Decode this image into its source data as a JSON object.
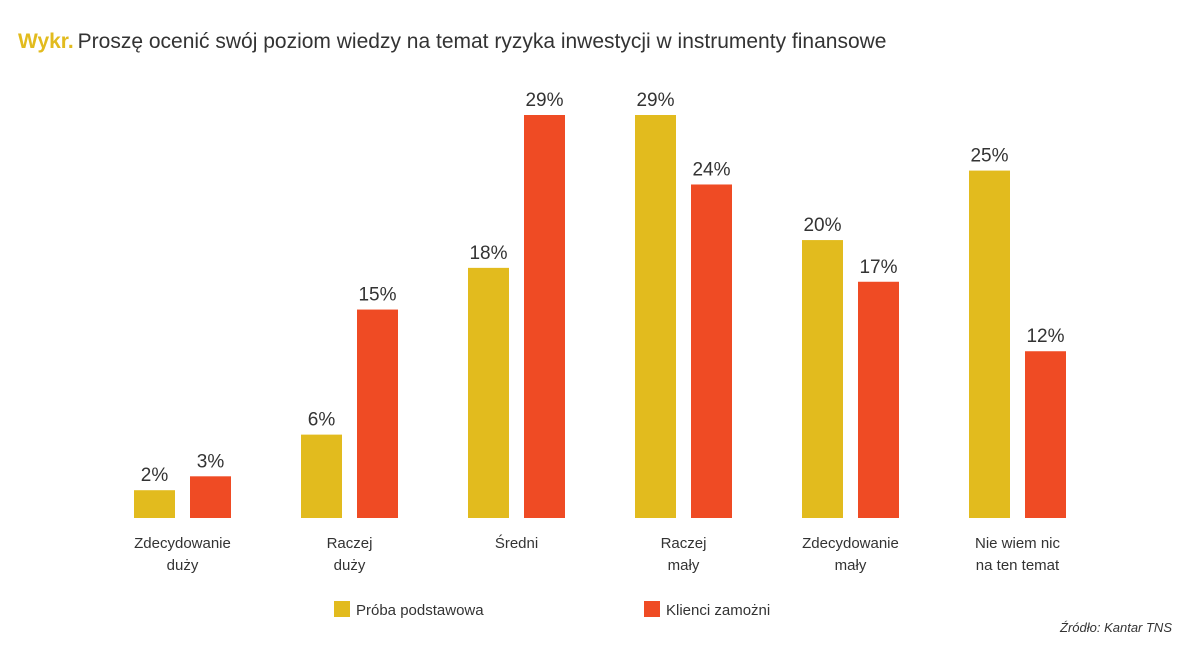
{
  "title": {
    "prefix": "Wykr.",
    "text": "Proszę ocenić swój poziom wiedzy na temat ryzyka inwestycji w instrumenty finansowe"
  },
  "source": "Źródło: Kantar TNS",
  "chart_data": {
    "type": "bar",
    "categories": [
      [
        "Zdecydowanie",
        "duży"
      ],
      [
        "Raczej",
        "duży"
      ],
      [
        "Średni"
      ],
      [
        "Raczej",
        "mały"
      ],
      [
        "Zdecydowanie",
        "mały"
      ],
      [
        "Nie wiem nic",
        "na ten temat"
      ]
    ],
    "series": [
      {
        "name": "Próba podstawowa",
        "color": "#e2bb1e",
        "values": [
          2,
          6,
          18,
          29,
          20,
          25
        ]
      },
      {
        "name": "Klienci zamożni",
        "color": "#ef4b24",
        "values": [
          3,
          15,
          29,
          24,
          17,
          12
        ]
      }
    ],
    "value_suffix": "%",
    "ylim": [
      0,
      29
    ],
    "grid": false,
    "legend_position": "bottom"
  }
}
